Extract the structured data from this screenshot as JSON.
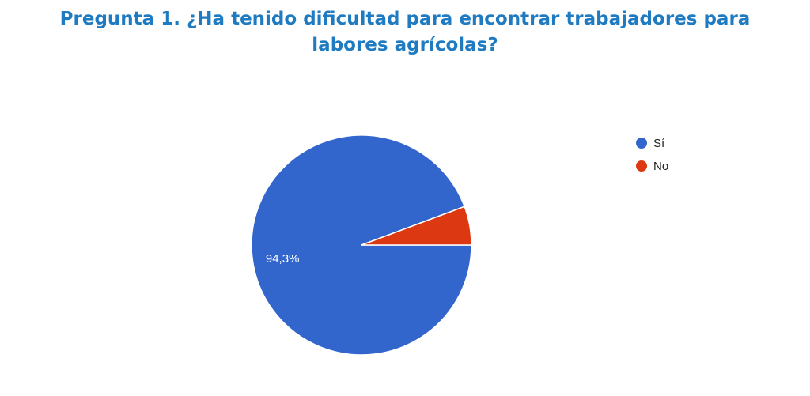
{
  "chart_data": {
    "type": "pie",
    "title": "Pregunta 1. ¿Ha tenido dificultad para encontrar trabajadores para labores agrícolas?",
    "categories": [
      "Sí",
      "No"
    ],
    "values": [
      94.3,
      5.7
    ],
    "value_labels": [
      "94,3%",
      null
    ],
    "colors": [
      "#3366cc",
      "#dc3912"
    ],
    "legend": "right"
  }
}
